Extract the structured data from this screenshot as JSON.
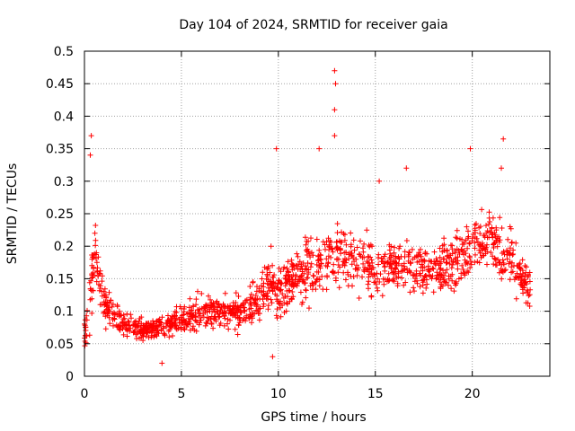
{
  "chart_data": {
    "type": "scatter",
    "title": "Day 104 of 2024, SRMTID for receiver gaia",
    "xlabel": "GPS time / hours",
    "ylabel": "SRMTID / TECUs",
    "xlim": [
      0,
      24
    ],
    "ylim": [
      0,
      0.5
    ],
    "x_ticks": [
      0,
      5,
      10,
      15,
      20
    ],
    "x_tick_labels": [
      "0",
      "5",
      "10",
      "15",
      "20"
    ],
    "y_ticks": [
      0,
      0.05,
      0.1,
      0.15,
      0.2,
      0.25,
      0.3,
      0.35,
      0.4,
      0.45,
      0.5
    ],
    "y_tick_labels": [
      "0",
      "0.05",
      "0.1",
      "0.15",
      "0.2",
      "0.25",
      "0.3",
      "0.35",
      "0.4",
      "0.45",
      "0.5"
    ],
    "grid": true,
    "marker": "+",
    "color": "#ff0000",
    "series": [
      {
        "name": "SRMTID",
        "x_range": [
          0,
          23
        ],
        "envelope_hours": [
          0,
          0.3,
          0.5,
          1,
          1.5,
          2,
          3,
          4,
          5,
          6,
          7,
          8,
          9,
          9.5,
          10,
          11,
          12,
          13,
          14,
          15,
          16,
          17,
          18,
          19,
          20,
          21,
          22,
          23
        ],
        "envelope_median": [
          0.06,
          0.1,
          0.2,
          0.11,
          0.1,
          0.08,
          0.07,
          0.075,
          0.09,
          0.1,
          0.1,
          0.1,
          0.12,
          0.15,
          0.13,
          0.15,
          0.17,
          0.19,
          0.18,
          0.16,
          0.17,
          0.17,
          0.16,
          0.17,
          0.2,
          0.21,
          0.18,
          0.13
        ],
        "envelope_spread": [
          0.03,
          0.1,
          0.08,
          0.04,
          0.04,
          0.03,
          0.025,
          0.03,
          0.035,
          0.04,
          0.04,
          0.04,
          0.05,
          0.07,
          0.06,
          0.06,
          0.08,
          0.08,
          0.07,
          0.06,
          0.06,
          0.06,
          0.06,
          0.07,
          0.07,
          0.07,
          0.07,
          0.04
        ],
        "notable_points": [
          {
            "x": 0.35,
            "y": 0.37
          },
          {
            "x": 0.3,
            "y": 0.34
          },
          {
            "x": 9.9,
            "y": 0.35
          },
          {
            "x": 12.1,
            "y": 0.35
          },
          {
            "x": 12.9,
            "y": 0.47
          },
          {
            "x": 12.95,
            "y": 0.45
          },
          {
            "x": 12.9,
            "y": 0.41
          },
          {
            "x": 12.9,
            "y": 0.37
          },
          {
            "x": 19.9,
            "y": 0.35
          },
          {
            "x": 21.6,
            "y": 0.365
          },
          {
            "x": 21.5,
            "y": 0.32
          },
          {
            "x": 15.2,
            "y": 0.3
          },
          {
            "x": 16.6,
            "y": 0.32
          },
          {
            "x": 4.0,
            "y": 0.02
          },
          {
            "x": 9.7,
            "y": 0.03
          }
        ]
      }
    ]
  }
}
